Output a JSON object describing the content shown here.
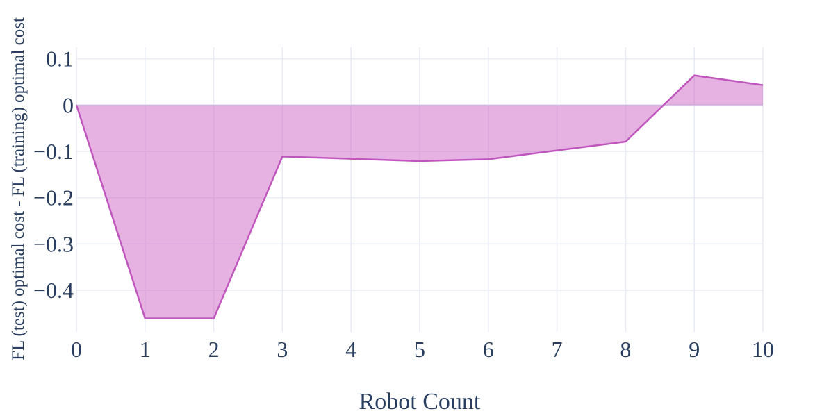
{
  "chart_data": {
    "type": "area",
    "title": "",
    "xlabel": "Robot Count",
    "ylabel": "FL (test) optimal cost - FL (training) optimal cost",
    "x": [
      0,
      1,
      2,
      3,
      4,
      5,
      6,
      7,
      8,
      9,
      10
    ],
    "series": [
      {
        "values": [
          0,
          -0.461,
          -0.461,
          -0.111,
          -0.116,
          -0.121,
          -0.117,
          -0.098,
          -0.079,
          0.064,
          0.043
        ]
      }
    ],
    "fill_to": 0,
    "xlim": [
      0,
      10
    ],
    "ylim": [
      -0.49,
      0.125
    ],
    "x_ticks": [
      0,
      1,
      2,
      3,
      4,
      5,
      6,
      7,
      8,
      9,
      10
    ],
    "y_ticks": [
      0.1,
      0,
      -0.1,
      -0.2,
      -0.3,
      -0.4
    ],
    "y_tick_labels": [
      "0.1",
      "0",
      "−0.1",
      "−0.2",
      "−0.3",
      "−0.4"
    ],
    "grid": true,
    "legend": "none",
    "colors": {
      "line": "#c055bd",
      "fill": "#cc66c4",
      "grid": "#e8eaf4",
      "text": "#2a3f5f",
      "zero_line": "#d9dceb"
    }
  }
}
